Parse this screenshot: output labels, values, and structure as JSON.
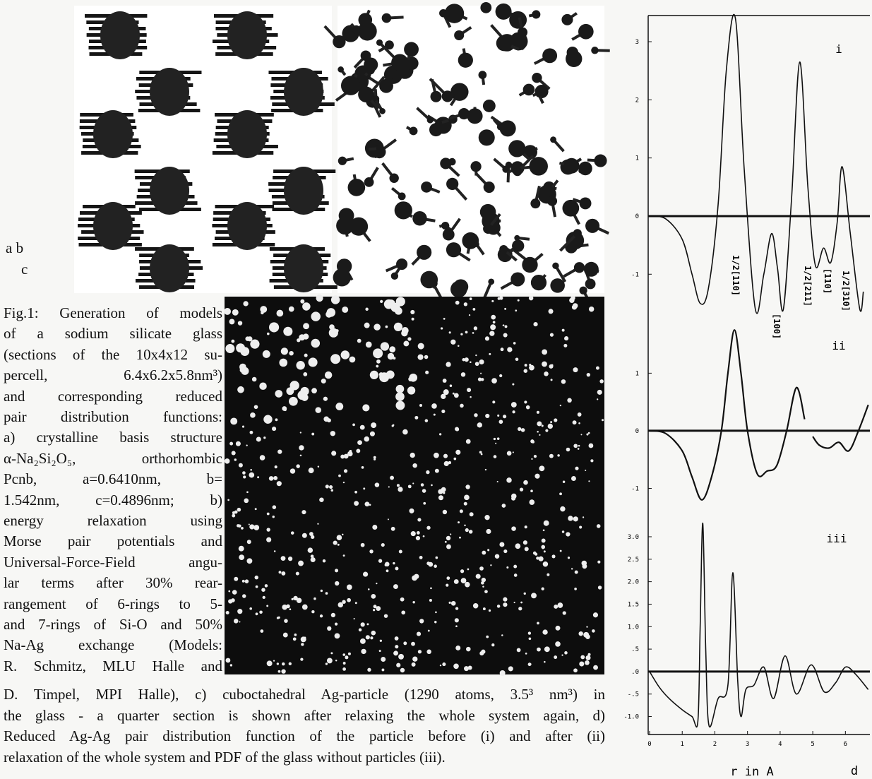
{
  "figure": {
    "panel_labels": {
      "ab": "a b",
      "c": "c",
      "d": "d"
    },
    "caption_lines": [
      "Fig.1: Generation of models",
      "of a sodium silicate glass",
      "(sections of the 10x4x12 su-",
      "percell,  6.4x6.2x5.8nm³)",
      "and corresponding reduced",
      "pair distribution functions:",
      "a) crystalline basis structure",
      "α-Na₂Si₂O₅, orthorhombic",
      "Pcnb,  a=0.6410nm,  b=",
      "1.542nm,  c=0.4896nm;  b)",
      "energy  relaxation  using",
      "Morse pair potentials and",
      "Universal-Force-Field angu-",
      "lar terms after 30% rear-",
      "rangement of 6-rings to 5-",
      "and 7-rings of Si-O and 50%",
      "Na-Ag exchange (Models:",
      "R. Schmitz, MLU Halle and"
    ],
    "caption_full_lines": [
      "D. Timpel, MPI Halle), c) cuboctahedral Ag-particle (1290 atoms, 3.5³ nm³) in",
      "the glass - a quarter section is shown after relaxing the whole system again, d)",
      "Reduced Ag-Ag pair distribution function of the particle before (i) and after (ii)",
      "relaxation of the whole system and PDF of the glass  without particles (iii)."
    ]
  },
  "chart_data": [
    {
      "type": "line",
      "label": "i",
      "color": "#111",
      "x": [
        0,
        0.5,
        1.0,
        1.3,
        1.55,
        1.8,
        2.1,
        2.35,
        2.63,
        2.9,
        3.24,
        3.5,
        3.74,
        3.92,
        4.1,
        4.35,
        4.6,
        4.85,
        5.08,
        5.33,
        5.55,
        5.75,
        5.9,
        6.15,
        6.44,
        6.55
      ],
      "values": [
        0,
        -0.05,
        -0.4,
        -1.0,
        -1.5,
        -1.25,
        0.2,
        2.5,
        3.4,
        0.8,
        -1.6,
        -1.0,
        -0.3,
        -0.9,
        -1.6,
        0.3,
        2.65,
        0.5,
        -0.85,
        -0.55,
        -0.8,
        -0.1,
        0.85,
        -0.3,
        -1.6,
        -1.3
      ],
      "xlim": [
        0,
        6.75
      ],
      "ylim": [
        -1.75,
        3.45
      ],
      "yticks": [
        3,
        2,
        1,
        0,
        -1
      ],
      "annotations": [
        "1/2[110]",
        "[100]",
        "1/2[211]",
        "[110]",
        "1/2[310]"
      ]
    },
    {
      "type": "line",
      "label": "ii",
      "color": "#111",
      "x": [
        0,
        0.5,
        1.0,
        1.3,
        1.6,
        1.9,
        2.2,
        2.4,
        2.6,
        2.8,
        3.0,
        3.3,
        3.6,
        3.9,
        4.2,
        4.5,
        4.75,
        4.85,
        5.0,
        5.2,
        5.5,
        5.8,
        6.1,
        6.4,
        6.7
      ],
      "values": [
        0,
        -0.05,
        -0.35,
        -0.8,
        -1.2,
        -0.8,
        0,
        1.0,
        1.75,
        1.0,
        0,
        -0.75,
        -0.7,
        -0.6,
        0,
        0.75,
        0.2,
        null,
        -0.1,
        -0.25,
        -0.3,
        -0.2,
        -0.35,
        0,
        0.45
      ],
      "xlim": [
        0,
        6.75
      ],
      "ylim": [
        -1.35,
        1.9
      ],
      "yticks": [
        1,
        0,
        -1
      ]
    },
    {
      "type": "line",
      "label": "iii",
      "color": "#111",
      "x": [
        0,
        0.3,
        0.6,
        1.0,
        1.3,
        1.48,
        1.55,
        1.63,
        1.72,
        1.82,
        2.1,
        2.4,
        2.55,
        2.7,
        2.8,
        2.95,
        3.2,
        3.5,
        3.8,
        4.15,
        4.5,
        4.95,
        5.35,
        5.7,
        6.0,
        6.3,
        6.7
      ],
      "values": [
        0,
        -0.35,
        -0.6,
        -0.85,
        -1.0,
        -1.1,
        1.0,
        3.3,
        0.5,
        -1.2,
        -0.6,
        -0.3,
        2.2,
        -0.2,
        -1.0,
        -0.4,
        -0.3,
        0.1,
        -0.6,
        0.35,
        -0.5,
        0.15,
        -0.45,
        -0.25,
        0.1,
        -0.05,
        -0.4
      ],
      "xlim": [
        0,
        6.75
      ],
      "ylim": [
        -1.4,
        3.55
      ],
      "yticks": [
        {
          "value": 3,
          "label": "3.0"
        },
        {
          "value": 2.5,
          "label": "2.5"
        },
        {
          "value": 2,
          "label": "2.0"
        },
        {
          "value": 1.5,
          "label": "1.5"
        },
        {
          "value": 1,
          "label": "1.0"
        },
        {
          "value": 0.5,
          "label": ".5"
        },
        {
          "value": 0,
          "label": ".0"
        },
        {
          "value": -0.5,
          "label": "-.5"
        },
        {
          "value": -1,
          "label": "-1.0"
        }
      ],
      "xticks": [
        0,
        1,
        2,
        3,
        4,
        5,
        6
      ],
      "xlabel": "r in A"
    }
  ]
}
